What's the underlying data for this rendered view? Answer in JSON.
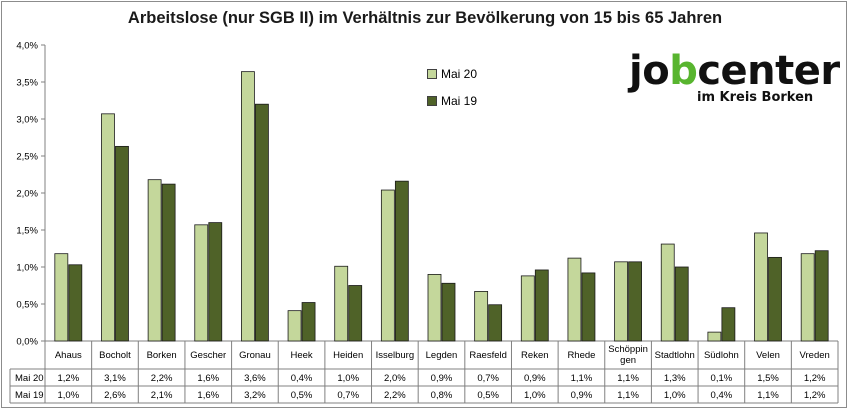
{
  "chart_data": {
    "type": "bar",
    "title": "Arbeitslose (nur SGB II) im Verhältnis zur Bevölkerung von 15 bis 65 Jahren",
    "categories": [
      "Ahaus",
      "Bocholt",
      "Borken",
      "Gescher",
      "Gronau",
      "Heek",
      "Heiden",
      "Isselburg",
      "Legden",
      "Raesfeld",
      "Reken",
      "Rhede",
      "Schöppin gen",
      "Stadtlohn",
      "Südlohn",
      "Velen",
      "Vreden"
    ],
    "series": [
      {
        "name": "Mai 20",
        "color": "#c4d79b",
        "values": [
          1.18,
          3.07,
          2.18,
          1.57,
          3.64,
          0.41,
          1.01,
          2.04,
          0.9,
          0.67,
          0.88,
          1.12,
          1.07,
          1.31,
          0.12,
          1.46,
          1.18
        ],
        "labels": [
          "1,2%",
          "3,1%",
          "2,2%",
          "1,6%",
          "3,6%",
          "0,4%",
          "1,0%",
          "2,0%",
          "0,9%",
          "0,7%",
          "0,9%",
          "1,1%",
          "1,1%",
          "1,3%",
          "0,1%",
          "1,5%",
          "1,2%"
        ]
      },
      {
        "name": "Mai 19",
        "color": "#4f6228",
        "values": [
          1.03,
          2.63,
          2.12,
          1.6,
          3.2,
          0.52,
          0.75,
          2.16,
          0.78,
          0.49,
          0.96,
          0.92,
          1.07,
          1.0,
          0.45,
          1.13,
          1.22
        ],
        "labels": [
          "1,0%",
          "2,6%",
          "2,1%",
          "1,6%",
          "3,2%",
          "0,5%",
          "0,7%",
          "2,2%",
          "0,8%",
          "0,5%",
          "1,0%",
          "0,9%",
          "1,1%",
          "1,0%",
          "0,4%",
          "1,1%",
          "1,2%"
        ]
      }
    ],
    "ylim": [
      0,
      4
    ],
    "yticks": [
      0,
      0.5,
      1,
      1.5,
      2,
      2.5,
      3,
      3.5,
      4
    ],
    "ytick_labels": [
      "0,0%",
      "0,5%",
      "1,0%",
      "1,5%",
      "2,0%",
      "2,5%",
      "3,0%",
      "3,5%",
      "4,0%"
    ],
    "grid": false,
    "legend_position": "top-center",
    "data_table": true
  },
  "logo": {
    "text_part1": "jo",
    "text_part2": "b",
    "text_part3": "center",
    "subtitle": "im Kreis Borken",
    "accent_color": "#58b52f"
  }
}
